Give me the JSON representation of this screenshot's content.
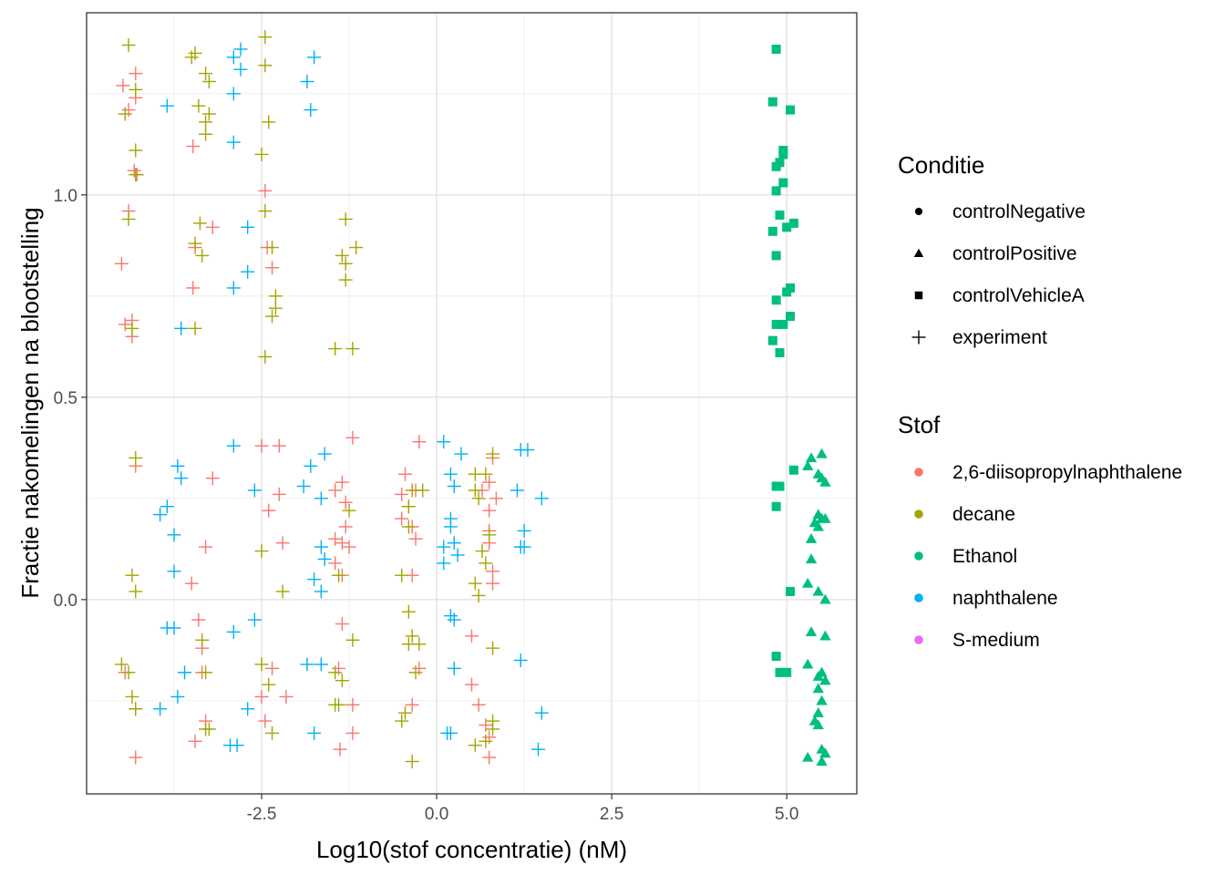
{
  "chart_data": {
    "type": "scatter",
    "xlabel": "Log10(stof concentratie) (nM)",
    "ylabel": "Fractie nakomelingen na blootstelling",
    "xlim": [
      -5.0,
      6.0
    ],
    "ylim": [
      -0.48,
      1.45
    ],
    "x_ticks": [
      -2.5,
      0.0,
      2.5,
      5.0
    ],
    "x_tick_labels": [
      "-2.5",
      "0.0",
      "2.5",
      "5.0"
    ],
    "y_ticks": [
      0.0,
      0.5,
      1.0
    ],
    "y_tick_labels": [
      "0.0",
      "0.5",
      "1.0"
    ],
    "grid": true,
    "legend_placement": "right",
    "legend_shape": {
      "title": "Conditie",
      "entries": [
        {
          "label": "controlNegative",
          "shape": "circle"
        },
        {
          "label": "controlPositive",
          "shape": "triangle"
        },
        {
          "label": "controlVehicleA",
          "shape": "square"
        },
        {
          "label": "experiment",
          "shape": "plus"
        }
      ]
    },
    "legend_color": {
      "title": "Stof",
      "entries": [
        {
          "label": "2,6-diisopropylnaphthalene",
          "color": "#F8766D"
        },
        {
          "label": "decane",
          "color": "#A3A500"
        },
        {
          "label": "Ethanol",
          "color": "#00BF7D"
        },
        {
          "label": "naphthalene",
          "color": "#00B0F6"
        },
        {
          "label": "S-medium",
          "color": "#E76BF3"
        }
      ]
    },
    "series": [
      {
        "name": "2,6-diisopropylnaphthalene",
        "shape": "experiment",
        "color": "#F8766D",
        "points": [
          [
            -4.48,
            1.27
          ],
          [
            -4.4,
            1.21
          ],
          [
            -4.3,
            1.3
          ],
          [
            -4.3,
            1.24
          ],
          [
            -4.32,
            1.06
          ],
          [
            -4.28,
            1.05
          ],
          [
            -4.4,
            0.96
          ],
          [
            -4.5,
            0.83
          ],
          [
            -4.45,
            0.68
          ],
          [
            -4.35,
            0.69
          ],
          [
            -4.35,
            0.65
          ],
          [
            -3.48,
            1.12
          ],
          [
            -3.48,
            0.77
          ],
          [
            -3.2,
            0.92
          ],
          [
            -3.45,
            0.87
          ],
          [
            -2.45,
            1.01
          ],
          [
            -2.42,
            0.87
          ],
          [
            -2.35,
            0.82
          ],
          [
            -4.3,
            0.33
          ],
          [
            -3.2,
            0.3
          ],
          [
            -2.5,
            0.38
          ],
          [
            -2.25,
            0.38
          ],
          [
            -2.25,
            0.26
          ],
          [
            -2.4,
            0.22
          ],
          [
            -2.2,
            0.14
          ],
          [
            -1.45,
            0.27
          ],
          [
            -1.35,
            0.29
          ],
          [
            -1.2,
            0.4
          ],
          [
            -1.3,
            0.24
          ],
          [
            -1.3,
            0.18
          ],
          [
            -1.35,
            0.14
          ],
          [
            -1.45,
            0.15
          ],
          [
            -1.25,
            0.13
          ],
          [
            -1.45,
            0.09
          ],
          [
            -1.35,
            0.06
          ],
          [
            -1.35,
            -0.06
          ],
          [
            -1.4,
            -0.17
          ],
          [
            -1.2,
            -0.26
          ],
          [
            -1.2,
            -0.33
          ],
          [
            -1.38,
            -0.37
          ],
          [
            -3.5,
            0.04
          ],
          [
            -3.4,
            -0.05
          ],
          [
            -3.35,
            -0.12
          ],
          [
            -3.35,
            -0.18
          ],
          [
            -3.3,
            -0.3
          ],
          [
            -3.45,
            -0.35
          ],
          [
            -4.45,
            -0.18
          ],
          [
            -4.3,
            -0.27
          ],
          [
            -4.3,
            -0.39
          ],
          [
            -3.3,
            0.13
          ],
          [
            -2.5,
            -0.24
          ],
          [
            -2.45,
            -0.3
          ],
          [
            -2.35,
            -0.17
          ],
          [
            -2.15,
            -0.24
          ],
          [
            -0.45,
            0.31
          ],
          [
            -0.5,
            0.26
          ],
          [
            -0.4,
            0.23
          ],
          [
            -0.5,
            0.2
          ],
          [
            -0.35,
            0.18
          ],
          [
            -0.3,
            0.15
          ],
          [
            -0.35,
            0.06
          ],
          [
            -0.25,
            0.39
          ],
          [
            -0.3,
            0.27
          ],
          [
            -0.35,
            -0.26
          ],
          [
            -0.25,
            -0.17
          ],
          [
            0.75,
            0.29
          ],
          [
            0.8,
            0.35
          ],
          [
            0.65,
            0.27
          ],
          [
            0.85,
            0.25
          ],
          [
            0.75,
            0.22
          ],
          [
            0.75,
            0.17
          ],
          [
            0.75,
            0.14
          ],
          [
            0.8,
            0.07
          ],
          [
            0.8,
            0.04
          ],
          [
            0.5,
            -0.09
          ],
          [
            0.5,
            -0.21
          ],
          [
            0.6,
            -0.26
          ],
          [
            0.7,
            -0.31
          ],
          [
            0.75,
            -0.34
          ],
          [
            0.75,
            -0.39
          ]
        ]
      },
      {
        "name": "decane",
        "shape": "experiment",
        "color": "#A3A500",
        "points": [
          [
            -4.4,
            1.37
          ],
          [
            -4.45,
            1.2
          ],
          [
            -4.3,
            1.26
          ],
          [
            -4.3,
            1.11
          ],
          [
            -4.3,
            1.05
          ],
          [
            -4.4,
            0.94
          ],
          [
            -4.35,
            0.67
          ],
          [
            -3.5,
            1.34
          ],
          [
            -3.45,
            1.35
          ],
          [
            -3.3,
            1.3
          ],
          [
            -3.25,
            1.28
          ],
          [
            -3.4,
            1.22
          ],
          [
            -3.3,
            1.18
          ],
          [
            -3.25,
            1.2
          ],
          [
            -3.3,
            1.15
          ],
          [
            -3.38,
            0.93
          ],
          [
            -3.45,
            0.88
          ],
          [
            -3.35,
            0.85
          ],
          [
            -3.45,
            0.67
          ],
          [
            -2.45,
            1.39
          ],
          [
            -2.45,
            1.32
          ],
          [
            -2.4,
            1.18
          ],
          [
            -2.5,
            1.1
          ],
          [
            -2.45,
            0.96
          ],
          [
            -2.35,
            0.87
          ],
          [
            -2.3,
            0.75
          ],
          [
            -2.3,
            0.72
          ],
          [
            -2.35,
            0.7
          ],
          [
            -2.45,
            0.6
          ],
          [
            -1.3,
            0.94
          ],
          [
            -1.35,
            0.85
          ],
          [
            -1.3,
            0.83
          ],
          [
            -1.3,
            0.79
          ],
          [
            -1.15,
            0.87
          ],
          [
            -1.45,
            0.62
          ],
          [
            -1.2,
            0.62
          ],
          [
            -4.3,
            0.35
          ],
          [
            -4.35,
            0.06
          ],
          [
            -4.3,
            0.02
          ],
          [
            -4.5,
            -0.16
          ],
          [
            -4.4,
            -0.18
          ],
          [
            -4.35,
            -0.24
          ],
          [
            -4.3,
            -0.27
          ],
          [
            -3.3,
            -0.18
          ],
          [
            -3.3,
            -0.32
          ],
          [
            -3.35,
            -0.1
          ],
          [
            -3.25,
            -0.32
          ],
          [
            -2.5,
            0.12
          ],
          [
            -2.2,
            0.02
          ],
          [
            -2.5,
            -0.16
          ],
          [
            -2.4,
            -0.21
          ],
          [
            -2.35,
            -0.33
          ],
          [
            -1.45,
            -0.26
          ],
          [
            -1.35,
            -0.2
          ],
          [
            -1.45,
            -0.18
          ],
          [
            -1.4,
            -0.26
          ],
          [
            -1.4,
            0.06
          ],
          [
            -1.25,
            0.22
          ],
          [
            -1.2,
            -0.1
          ],
          [
            -0.5,
            0.06
          ],
          [
            -0.4,
            -0.03
          ],
          [
            -0.4,
            -0.11
          ],
          [
            -0.35,
            -0.09
          ],
          [
            -0.25,
            -0.11
          ],
          [
            -0.35,
            0.27
          ],
          [
            -0.4,
            0.23
          ],
          [
            -0.4,
            0.18
          ],
          [
            -0.3,
            -0.18
          ],
          [
            -0.45,
            -0.28
          ],
          [
            -0.5,
            -0.3
          ],
          [
            -0.35,
            -0.4
          ],
          [
            -0.2,
            0.27
          ],
          [
            0.55,
            0.31
          ],
          [
            0.7,
            0.31
          ],
          [
            0.8,
            0.36
          ],
          [
            0.55,
            0.27
          ],
          [
            0.6,
            0.25
          ],
          [
            0.75,
            0.16
          ],
          [
            0.65,
            0.12
          ],
          [
            0.7,
            0.09
          ],
          [
            0.55,
            0.04
          ],
          [
            0.6,
            0.01
          ],
          [
            0.8,
            -0.12
          ],
          [
            0.8,
            -0.3
          ],
          [
            0.7,
            -0.35
          ],
          [
            0.8,
            -0.32
          ],
          [
            0.55,
            -0.36
          ]
        ]
      },
      {
        "name": "naphthalene",
        "shape": "experiment",
        "color": "#00B0F6",
        "points": [
          [
            -2.8,
            1.36
          ],
          [
            -2.9,
            1.34
          ],
          [
            -2.8,
            1.31
          ],
          [
            -2.9,
            1.25
          ],
          [
            -2.9,
            1.13
          ],
          [
            -1.85,
            1.28
          ],
          [
            -1.75,
            1.34
          ],
          [
            -1.8,
            1.21
          ],
          [
            -3.85,
            1.22
          ],
          [
            -2.7,
            0.92
          ],
          [
            -2.7,
            0.81
          ],
          [
            -2.9,
            0.77
          ],
          [
            -3.65,
            0.67
          ],
          [
            -3.7,
            0.33
          ],
          [
            -3.65,
            0.3
          ],
          [
            -3.95,
            0.21
          ],
          [
            -3.85,
            0.23
          ],
          [
            -3.75,
            0.16
          ],
          [
            -3.75,
            0.07
          ],
          [
            -3.85,
            -0.07
          ],
          [
            -3.75,
            -0.07
          ],
          [
            -3.6,
            -0.18
          ],
          [
            -3.7,
            -0.24
          ],
          [
            -3.95,
            -0.27
          ],
          [
            -2.9,
            0.38
          ],
          [
            -2.6,
            0.27
          ],
          [
            -2.7,
            -0.27
          ],
          [
            -2.85,
            -0.36
          ],
          [
            -2.95,
            -0.36
          ],
          [
            -2.6,
            -0.05
          ],
          [
            -2.9,
            -0.08
          ],
          [
            -1.9,
            0.28
          ],
          [
            -1.6,
            0.36
          ],
          [
            -1.8,
            0.33
          ],
          [
            -1.65,
            0.25
          ],
          [
            -1.65,
            0.13
          ],
          [
            -1.6,
            0.1
          ],
          [
            -1.75,
            0.05
          ],
          [
            -1.65,
            0.02
          ],
          [
            -1.85,
            -0.16
          ],
          [
            -1.65,
            -0.16
          ],
          [
            -1.75,
            -0.33
          ],
          [
            0.1,
            0.39
          ],
          [
            0.25,
            0.28
          ],
          [
            0.35,
            0.36
          ],
          [
            0.2,
            0.31
          ],
          [
            0.2,
            0.2
          ],
          [
            0.2,
            0.18
          ],
          [
            0.1,
            0.13
          ],
          [
            0.25,
            0.14
          ],
          [
            0.3,
            0.11
          ],
          [
            0.1,
            0.09
          ],
          [
            0.2,
            -0.04
          ],
          [
            0.25,
            -0.05
          ],
          [
            0.25,
            -0.17
          ],
          [
            0.15,
            -0.33
          ],
          [
            0.2,
            -0.33
          ],
          [
            1.2,
            0.37
          ],
          [
            1.3,
            0.37
          ],
          [
            1.15,
            0.27
          ],
          [
            1.25,
            0.17
          ],
          [
            1.2,
            0.13
          ],
          [
            1.25,
            0.13
          ],
          [
            1.5,
            0.25
          ],
          [
            1.2,
            -0.15
          ],
          [
            1.5,
            -0.28
          ],
          [
            1.45,
            -0.37
          ]
        ]
      },
      {
        "name": "Ethanol",
        "shape": "controlVehicleA",
        "color": "#00BF7D",
        "points": [
          [
            4.85,
            1.36
          ],
          [
            4.8,
            1.23
          ],
          [
            5.05,
            1.21
          ],
          [
            4.95,
            1.11
          ],
          [
            4.95,
            1.1
          ],
          [
            4.9,
            1.08
          ],
          [
            4.85,
            1.07
          ],
          [
            4.95,
            1.03
          ],
          [
            4.85,
            1.01
          ],
          [
            4.9,
            0.95
          ],
          [
            5.1,
            0.93
          ],
          [
            5.0,
            0.92
          ],
          [
            4.8,
            0.91
          ],
          [
            4.85,
            0.85
          ],
          [
            5.05,
            0.77
          ],
          [
            5.0,
            0.76
          ],
          [
            4.85,
            0.74
          ],
          [
            5.05,
            0.7
          ],
          [
            4.95,
            0.68
          ],
          [
            4.85,
            0.68
          ],
          [
            4.8,
            0.64
          ],
          [
            4.9,
            0.61
          ],
          [
            4.85,
            0.28
          ],
          [
            4.9,
            0.28
          ],
          [
            4.85,
            0.23
          ],
          [
            5.1,
            0.32
          ],
          [
            5.05,
            0.02
          ],
          [
            4.85,
            -0.14
          ],
          [
            4.9,
            -0.18
          ],
          [
            5.0,
            -0.18
          ]
        ]
      },
      {
        "name": "Ethanol",
        "shape": "controlPositive",
        "color": "#00BF7D",
        "points": [
          [
            5.35,
            0.35
          ],
          [
            5.5,
            0.36
          ],
          [
            5.3,
            0.33
          ],
          [
            5.45,
            0.31
          ],
          [
            5.5,
            0.3
          ],
          [
            5.55,
            0.29
          ],
          [
            5.45,
            0.21
          ],
          [
            5.5,
            0.2
          ],
          [
            5.55,
            0.2
          ],
          [
            5.4,
            0.19
          ],
          [
            5.45,
            0.18
          ],
          [
            5.35,
            0.15
          ],
          [
            5.35,
            0.1
          ],
          [
            5.3,
            0.04
          ],
          [
            5.45,
            0.02
          ],
          [
            5.55,
            0.0
          ],
          [
            5.35,
            -0.08
          ],
          [
            5.55,
            -0.09
          ],
          [
            5.3,
            -0.16
          ],
          [
            5.45,
            -0.19
          ],
          [
            5.5,
            -0.18
          ],
          [
            5.55,
            -0.2
          ],
          [
            5.45,
            -0.22
          ],
          [
            5.5,
            -0.25
          ],
          [
            5.45,
            -0.28
          ],
          [
            5.4,
            -0.3
          ],
          [
            5.45,
            -0.31
          ],
          [
            5.5,
            -0.37
          ],
          [
            5.55,
            -0.38
          ],
          [
            5.3,
            -0.39
          ],
          [
            5.5,
            -0.4
          ]
        ]
      }
    ]
  }
}
